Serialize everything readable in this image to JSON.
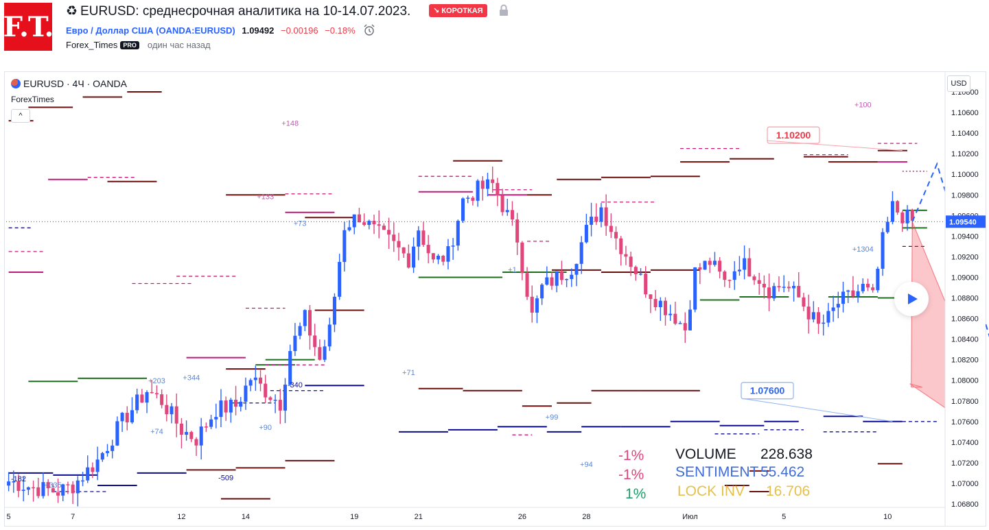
{
  "header": {
    "logo_text": "F.T.",
    "title_icon": "recycle-icon",
    "title": "EURUSD: среднесрочная аналитика на 10-14.07.2023.",
    "badge": "↘ КОРОТКАЯ",
    "symbol_link": "Евро / Доллар США",
    "symbol_code": "(OANDA:EURUSD)",
    "price": "1.09492",
    "change": "−0.00196",
    "change_pct": "−0.18%",
    "author": "Forex_Times",
    "pro_badge": "PRO",
    "posted": "один час назад"
  },
  "chart": {
    "legend": "EURUSD · 4Ч · OANDA",
    "indicator": "ForexTimes",
    "currency": "USD",
    "collapse": "^"
  },
  "colors": {
    "up": "#2962ff",
    "down": "#e0457b",
    "target_red": "#f23645",
    "blue_label": "#2962ff",
    "green": "#1b6e1b",
    "maroon": "#6b0d0d",
    "magenta": "#c2187a",
    "navy": "#0b0b8f"
  },
  "stats": {
    "pcts": [
      "-1%",
      "-1%",
      "1%"
    ],
    "volume_label": "VOLUME",
    "volume_value": "228.638",
    "sentiment_label": "SENTIMENT",
    "sentiment_value": "55.462",
    "lockinv_label": "LOCK INV",
    "lockinv_value": "16.706"
  },
  "chart_data": {
    "type": "candlestick",
    "title": "EURUSD · 4Ч · OANDA",
    "ylim": [
      1.068,
      1.108
    ],
    "price_ticks": [
      "1.06800",
      "1.07000",
      "1.07200",
      "1.07400",
      "1.07600",
      "1.07800",
      "1.08000",
      "1.08200",
      "1.08400",
      "1.08600",
      "1.08800",
      "1.09000",
      "1.09200",
      "1.09400",
      "1.09600",
      "1.09800",
      "1.10000",
      "1.10200",
      "1.10400",
      "1.10600",
      "1.10800"
    ],
    "x_ticks": [
      {
        "label": "5",
        "at": 0
      },
      {
        "label": "7",
        "at": 13
      },
      {
        "label": "12",
        "at": 35
      },
      {
        "label": "14",
        "at": 48
      },
      {
        "label": "19",
        "at": 70
      },
      {
        "label": "21",
        "at": 83
      },
      {
        "label": "26",
        "at": 104
      },
      {
        "label": "28",
        "at": 117
      },
      {
        "label": "Июл",
        "at": 138
      },
      {
        "label": "5",
        "at": 157
      },
      {
        "label": "10",
        "at": 178
      }
    ],
    "bar_count": 190,
    "last_price": "1.09540",
    "current_price_level": 1.0954,
    "target_high": "1.10200",
    "target_low": "1.07600",
    "close_anchors": [
      [
        0,
        1.0702
      ],
      [
        5,
        1.0696
      ],
      [
        10,
        1.0692
      ],
      [
        13,
        1.0698
      ],
      [
        18,
        1.0722
      ],
      [
        23,
        1.076
      ],
      [
        28,
        1.079
      ],
      [
        31,
        1.078
      ],
      [
        35,
        1.0752
      ],
      [
        38,
        1.0743
      ],
      [
        42,
        1.0772
      ],
      [
        46,
        1.0775
      ],
      [
        49,
        1.0802
      ],
      [
        52,
        1.079
      ],
      [
        55,
        1.0778
      ],
      [
        57,
        1.083
      ],
      [
        60,
        1.086
      ],
      [
        63,
        1.082
      ],
      [
        65,
        1.0848
      ],
      [
        68,
        1.095
      ],
      [
        71,
        1.096
      ],
      [
        74,
        1.0945
      ],
      [
        77,
        1.0935
      ],
      [
        81,
        1.0918
      ],
      [
        83,
        1.0948
      ],
      [
        86,
        1.0914
      ],
      [
        89,
        1.0922
      ],
      [
        92,
        1.0975
      ],
      [
        95,
        1.0985
      ],
      [
        98,
        1.099
      ],
      [
        101,
        1.096
      ],
      [
        103,
        1.0938
      ],
      [
        106,
        1.0862
      ],
      [
        108,
        1.089
      ],
      [
        111,
        1.09
      ],
      [
        114,
        1.091
      ],
      [
        117,
        1.0945
      ],
      [
        120,
        1.0968
      ],
      [
        123,
        1.0938
      ],
      [
        126,
        1.0915
      ],
      [
        129,
        1.089
      ],
      [
        132,
        1.0875
      ],
      [
        135,
        1.0862
      ],
      [
        137,
        1.085
      ],
      [
        139,
        1.0905
      ],
      [
        142,
        1.0915
      ],
      [
        145,
        1.0895
      ],
      [
        148,
        1.0915
      ],
      [
        151,
        1.0905
      ],
      [
        154,
        1.0888
      ],
      [
        157,
        1.0893
      ],
      [
        160,
        1.088
      ],
      [
        162,
        1.0866
      ],
      [
        164,
        1.0852
      ],
      [
        166,
        1.086
      ],
      [
        168,
        1.0875
      ],
      [
        171,
        1.0883
      ],
      [
        173,
        1.089
      ],
      [
        175,
        1.088
      ],
      [
        177,
        1.0935
      ],
      [
        179,
        1.0968
      ],
      [
        181,
        1.096
      ],
      [
        183,
        1.0954
      ]
    ],
    "levels": [
      {
        "from": 0,
        "to": 7,
        "price": 1.0925,
        "color": "magenta",
        "style": "dash"
      },
      {
        "from": 0,
        "to": 7,
        "price": 1.0905,
        "color": "magenta",
        "style": "solid"
      },
      {
        "from": 4,
        "to": 14,
        "price": 1.0799,
        "color": "green",
        "style": "solid"
      },
      {
        "from": 14,
        "to": 28,
        "price": 1.0802,
        "color": "green",
        "style": "solid"
      },
      {
        "from": 8,
        "to": 16,
        "price": 1.0995,
        "color": "magenta",
        "style": "solid"
      },
      {
        "from": 16,
        "to": 26,
        "price": 1.0997,
        "color": "magenta",
        "style": "dash"
      },
      {
        "from": 20,
        "to": 30,
        "price": 1.0993,
        "color": "maroon",
        "style": "solid"
      },
      {
        "from": 25,
        "to": 37,
        "price": 1.0894,
        "color": "magenta",
        "style": "dash"
      },
      {
        "from": 34,
        "to": 46,
        "price": 1.0901,
        "color": "magenta",
        "style": "dash"
      },
      {
        "from": 44,
        "to": 52,
        "price": 1.0811,
        "color": "maroon",
        "style": "solid"
      },
      {
        "from": 50,
        "to": 58,
        "price": 1.0815,
        "color": "green",
        "style": "solid"
      },
      {
        "from": 36,
        "to": 48,
        "price": 1.0822,
        "color": "magenta",
        "style": "solid"
      },
      {
        "from": 48,
        "to": 56,
        "price": 1.087,
        "color": "magenta",
        "style": "dash"
      },
      {
        "from": 44,
        "to": 56,
        "price": 1.098,
        "color": "maroon",
        "style": "solid"
      },
      {
        "from": 56,
        "to": 66,
        "price": 1.0963,
        "color": "magenta",
        "style": "solid"
      },
      {
        "from": 56,
        "to": 66,
        "price": 1.0981,
        "color": "magenta",
        "style": "dash"
      },
      {
        "from": 60,
        "to": 70,
        "price": 1.0958,
        "color": "maroon",
        "style": "solid"
      },
      {
        "from": 62,
        "to": 72,
        "price": 1.0868,
        "color": "maroon",
        "style": "solid"
      },
      {
        "from": 52,
        "to": 62,
        "price": 1.082,
        "color": "green",
        "style": "solid"
      },
      {
        "from": 60,
        "to": 72,
        "price": 1.0795,
        "color": "navy",
        "style": "solid"
      },
      {
        "from": 52,
        "to": 64,
        "price": 1.0815,
        "color": "magenta",
        "style": "dash"
      },
      {
        "from": 83,
        "to": 94,
        "price": 1.0983,
        "color": "magenta",
        "style": "solid"
      },
      {
        "from": 83,
        "to": 94,
        "price": 1.0998,
        "color": "magenta",
        "style": "dash"
      },
      {
        "from": 90,
        "to": 100,
        "price": 1.1013,
        "color": "maroon",
        "style": "solid"
      },
      {
        "from": 97,
        "to": 105,
        "price": 1.098,
        "color": "magenta",
        "style": "solid"
      },
      {
        "from": 98,
        "to": 106,
        "price": 1.0985,
        "color": "magenta",
        "style": "dash"
      },
      {
        "from": 83,
        "to": 100,
        "price": 1.09,
        "color": "green",
        "style": "solid"
      },
      {
        "from": 100,
        "to": 113,
        "price": 1.0905,
        "color": "green",
        "style": "solid"
      },
      {
        "from": 83,
        "to": 92,
        "price": 1.0792,
        "color": "maroon",
        "style": "solid"
      },
      {
        "from": 92,
        "to": 104,
        "price": 1.079,
        "color": "maroon",
        "style": "solid"
      },
      {
        "from": 104,
        "to": 110,
        "price": 1.0775,
        "color": "maroon",
        "style": "solid"
      },
      {
        "from": 111,
        "to": 118,
        "price": 1.0778,
        "color": "maroon",
        "style": "solid"
      },
      {
        "from": 118,
        "to": 128,
        "price": 1.079,
        "color": "maroon",
        "style": "solid"
      },
      {
        "from": 128,
        "to": 140,
        "price": 1.079,
        "color": "maroon",
        "style": "solid"
      },
      {
        "from": 105,
        "to": 110,
        "price": 1.098,
        "color": "maroon",
        "style": "solid"
      },
      {
        "from": 111,
        "to": 120,
        "price": 1.0995,
        "color": "maroon",
        "style": "solid"
      },
      {
        "from": 120,
        "to": 130,
        "price": 1.0997,
        "color": "maroon",
        "style": "solid"
      },
      {
        "from": 130,
        "to": 140,
        "price": 1.0998,
        "color": "maroon",
        "style": "solid"
      },
      {
        "from": 105,
        "to": 110,
        "price": 1.0935,
        "color": "magenta",
        "style": "dash"
      },
      {
        "from": 110,
        "to": 120,
        "price": 1.0907,
        "color": "maroon",
        "style": "solid"
      },
      {
        "from": 120,
        "to": 130,
        "price": 1.0905,
        "color": "maroon",
        "style": "solid"
      },
      {
        "from": 130,
        "to": 140,
        "price": 1.0907,
        "color": "maroon",
        "style": "solid"
      },
      {
        "from": 120,
        "to": 131,
        "price": 1.0973,
        "color": "magenta",
        "style": "dash"
      },
      {
        "from": 140,
        "to": 148,
        "price": 1.0878,
        "color": "green",
        "style": "solid"
      },
      {
        "from": 148,
        "to": 158,
        "price": 1.0881,
        "color": "green",
        "style": "solid"
      },
      {
        "from": 166,
        "to": 176,
        "price": 1.0881,
        "color": "green",
        "style": "solid"
      },
      {
        "from": 176,
        "to": 182,
        "price": 1.088,
        "color": "green",
        "style": "solid"
      },
      {
        "from": 136,
        "to": 148,
        "price": 1.1025,
        "color": "magenta",
        "style": "dash"
      },
      {
        "from": 136,
        "to": 146,
        "price": 1.1012,
        "color": "maroon",
        "style": "solid"
      },
      {
        "from": 146,
        "to": 155,
        "price": 1.1015,
        "color": "maroon",
        "style": "solid"
      },
      {
        "from": 161,
        "to": 170,
        "price": 1.1019,
        "color": "magenta",
        "style": "dash"
      },
      {
        "from": 161,
        "to": 170,
        "price": 1.1017,
        "color": "maroon",
        "style": "solid"
      },
      {
        "from": 166,
        "to": 176,
        "price": 1.1012,
        "color": "maroon",
        "style": "solid"
      },
      {
        "from": 176,
        "to": 182,
        "price": 1.1012,
        "color": "magenta",
        "style": "solid"
      },
      {
        "from": 176,
        "to": 182,
        "price": 1.1023,
        "color": "maroon",
        "style": "solid"
      },
      {
        "from": 176,
        "to": 184,
        "price": 1.103,
        "color": "magenta",
        "style": "dash"
      },
      {
        "from": 181,
        "to": 186,
        "price": 1.0965,
        "color": "green",
        "style": "solid"
      },
      {
        "from": 181,
        "to": 186,
        "price": 1.0948,
        "color": "green",
        "style": "solid"
      },
      {
        "from": 181,
        "to": 186,
        "price": 1.093,
        "color": "maroon",
        "style": "dash"
      },
      {
        "from": 181,
        "to": 186,
        "price": 1.1003,
        "color": "magenta",
        "style": "dot"
      },
      {
        "from": 0,
        "to": 9,
        "price": 1.071,
        "color": "navy",
        "style": "solid"
      },
      {
        "from": 9,
        "to": 18,
        "price": 1.0708,
        "color": "navy",
        "style": "solid"
      },
      {
        "from": 18,
        "to": 26,
        "price": 1.0698,
        "color": "navy",
        "style": "solid"
      },
      {
        "from": 26,
        "to": 36,
        "price": 1.071,
        "color": "navy",
        "style": "solid"
      },
      {
        "from": 36,
        "to": 46,
        "price": 1.0713,
        "color": "maroon",
        "style": "solid"
      },
      {
        "from": 46,
        "to": 56,
        "price": 1.0715,
        "color": "maroon",
        "style": "solid"
      },
      {
        "from": 56,
        "to": 66,
        "price": 1.0722,
        "color": "maroon",
        "style": "solid"
      },
      {
        "from": 43,
        "to": 53,
        "price": 1.0685,
        "color": "maroon",
        "style": "solid"
      },
      {
        "from": 79,
        "to": 89,
        "price": 1.075,
        "color": "navy",
        "style": "solid"
      },
      {
        "from": 89,
        "to": 99,
        "price": 1.0752,
        "color": "navy",
        "style": "solid"
      },
      {
        "from": 99,
        "to": 109,
        "price": 1.0755,
        "color": "navy",
        "style": "solid"
      },
      {
        "from": 109,
        "to": 116,
        "price": 1.075,
        "color": "navy",
        "style": "solid"
      },
      {
        "from": 116,
        "to": 124,
        "price": 1.0755,
        "color": "navy",
        "style": "solid"
      },
      {
        "from": 124,
        "to": 134,
        "price": 1.0755,
        "color": "navy",
        "style": "solid"
      },
      {
        "from": 134,
        "to": 144,
        "price": 1.076,
        "color": "navy",
        "style": "solid"
      },
      {
        "from": 144,
        "to": 153,
        "price": 1.0756,
        "color": "navy",
        "style": "solid"
      },
      {
        "from": 153,
        "to": 160,
        "price": 1.076,
        "color": "navy",
        "style": "solid"
      },
      {
        "from": 165,
        "to": 173,
        "price": 1.0765,
        "color": "navy",
        "style": "solid"
      },
      {
        "from": 173,
        "to": 181,
        "price": 1.076,
        "color": "navy",
        "style": "solid"
      },
      {
        "from": 176,
        "to": 188,
        "price": 1.076,
        "color": "navy",
        "style": "dash"
      },
      {
        "from": 165,
        "to": 176,
        "price": 1.075,
        "color": "navy",
        "style": "dash"
      },
      {
        "from": 143,
        "to": 152,
        "price": 1.0748,
        "color": "navy",
        "style": "dash"
      },
      {
        "from": 153,
        "to": 161,
        "price": 1.0752,
        "color": "navy",
        "style": "dash"
      },
      {
        "from": 9,
        "to": 20,
        "price": 1.0692,
        "color": "navy",
        "style": "dash"
      },
      {
        "from": 45,
        "to": 54,
        "price": 1.0778,
        "color": "navy",
        "style": "dash"
      },
      {
        "from": 53,
        "to": 64,
        "price": 1.079,
        "color": "navy",
        "style": "dash"
      },
      {
        "from": 102,
        "to": 106,
        "price": 1.0747,
        "color": "magenta",
        "style": "dash"
      },
      {
        "from": 145,
        "to": 150,
        "price": 1.0698,
        "color": "maroon",
        "style": "solid"
      },
      {
        "from": 150,
        "to": 154,
        "price": 1.0712,
        "color": "maroon",
        "style": "solid"
      },
      {
        "from": 150,
        "to": 154,
        "price": 1.0692,
        "color": "maroon",
        "style": "solid"
      },
      {
        "from": 176,
        "to": 181,
        "price": 1.0719,
        "color": "maroon",
        "style": "solid"
      },
      {
        "from": 0,
        "to": 5,
        "price": 1.0948,
        "color": "navy",
        "style": "dash"
      },
      {
        "from": 4,
        "to": 13,
        "price": 1.1065,
        "color": "maroon",
        "style": "solid"
      },
      {
        "from": 15,
        "to": 23,
        "price": 1.1075,
        "color": "maroon",
        "style": "solid"
      },
      {
        "from": 24,
        "to": 31,
        "price": 1.108,
        "color": "maroon",
        "style": "solid"
      },
      {
        "from": 0,
        "to": 5,
        "price": 1.1052,
        "color": "maroon",
        "style": "solid"
      }
    ],
    "annotations": [
      {
        "text": "+148",
        "at": 57,
        "price": 1.1047,
        "color": "magenta"
      },
      {
        "text": "+100",
        "at": 173,
        "price": 1.1065,
        "color": "magenta"
      },
      {
        "text": "+133",
        "at": 52,
        "price": 1.0976,
        "color": "magenta"
      },
      {
        "text": "+73",
        "at": 59,
        "price": 1.095,
        "color": "blue"
      },
      {
        "text": "+1304",
        "at": 173,
        "price": 1.0925,
        "color": "blue"
      },
      {
        "text": "+71",
        "at": 81,
        "price": 1.0805,
        "color": "blue"
      },
      {
        "text": "+203",
        "at": 30,
        "price": 1.0797,
        "color": "blue"
      },
      {
        "text": "+344",
        "at": 37,
        "price": 1.08,
        "color": "blue"
      },
      {
        "text": "-340",
        "at": 58,
        "price": 1.0793,
        "color": "navy"
      },
      {
        "text": "+74",
        "at": 30,
        "price": 1.0748,
        "color": "blue"
      },
      {
        "text": "+90",
        "at": 52,
        "price": 1.0752,
        "color": "blue"
      },
      {
        "text": "+99",
        "at": 110,
        "price": 1.0762,
        "color": "blue"
      },
      {
        "text": "+94",
        "at": 117,
        "price": 1.0716,
        "color": "blue"
      },
      {
        "text": "-509",
        "at": 44,
        "price": 1.0703,
        "color": "navy"
      },
      {
        "text": "+335",
        "at": 9,
        "price": 1.0696,
        "color": "blue"
      },
      {
        "text": "+1",
        "at": 102,
        "price": 1.0905,
        "color": "blue"
      },
      {
        "text": "-182",
        "at": 2,
        "price": 1.0702,
        "color": "navy"
      }
    ]
  }
}
